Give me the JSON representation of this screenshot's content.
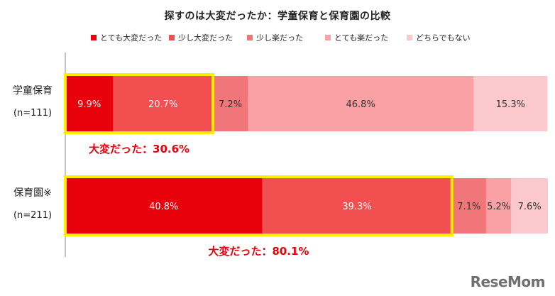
{
  "chart_data": {
    "type": "bar",
    "orientation": "horizontal",
    "stacked": true,
    "percent": true,
    "title": "探すのは大変だったか：学童保育と保育園の比較",
    "categories": [
      {
        "name": "学童保育",
        "n": "(n=111)"
      },
      {
        "name": "保育園※",
        "n": "(n=211)"
      }
    ],
    "series": [
      {
        "name": "とても大変だった",
        "color": "#e8000b",
        "values": [
          9.9,
          40.8
        ]
      },
      {
        "name": "少し大変だった",
        "color": "#f24f50",
        "values": [
          20.7,
          39.3
        ]
      },
      {
        "name": "少し楽だった",
        "color": "#f17679",
        "values": [
          7.2,
          7.1
        ]
      },
      {
        "name": "とても楽だった",
        "color": "#f9a1a4",
        "values": [
          46.8,
          5.2
        ]
      },
      {
        "name": "どちらでもない",
        "color": "#fbc9cb",
        "values": [
          15.3,
          7.6
        ]
      }
    ],
    "value_labels": [
      [
        "9.9%",
        "20.7%",
        "7.2%",
        "46.8%",
        "15.3%"
      ],
      [
        "40.8%",
        "39.3%",
        "7.1%",
        "5.2%",
        "7.6%"
      ]
    ],
    "annotations": [
      {
        "text": "大変だった：30.6%",
        "value": 30.6,
        "color": "#e8000b"
      },
      {
        "text": "大変だった：80.1%",
        "value": 80.1,
        "color": "#e8000b"
      }
    ],
    "highlight_color": "#ffee00",
    "xlim": [
      0,
      100
    ],
    "legend_position": "top"
  },
  "brand": "ReseMom"
}
